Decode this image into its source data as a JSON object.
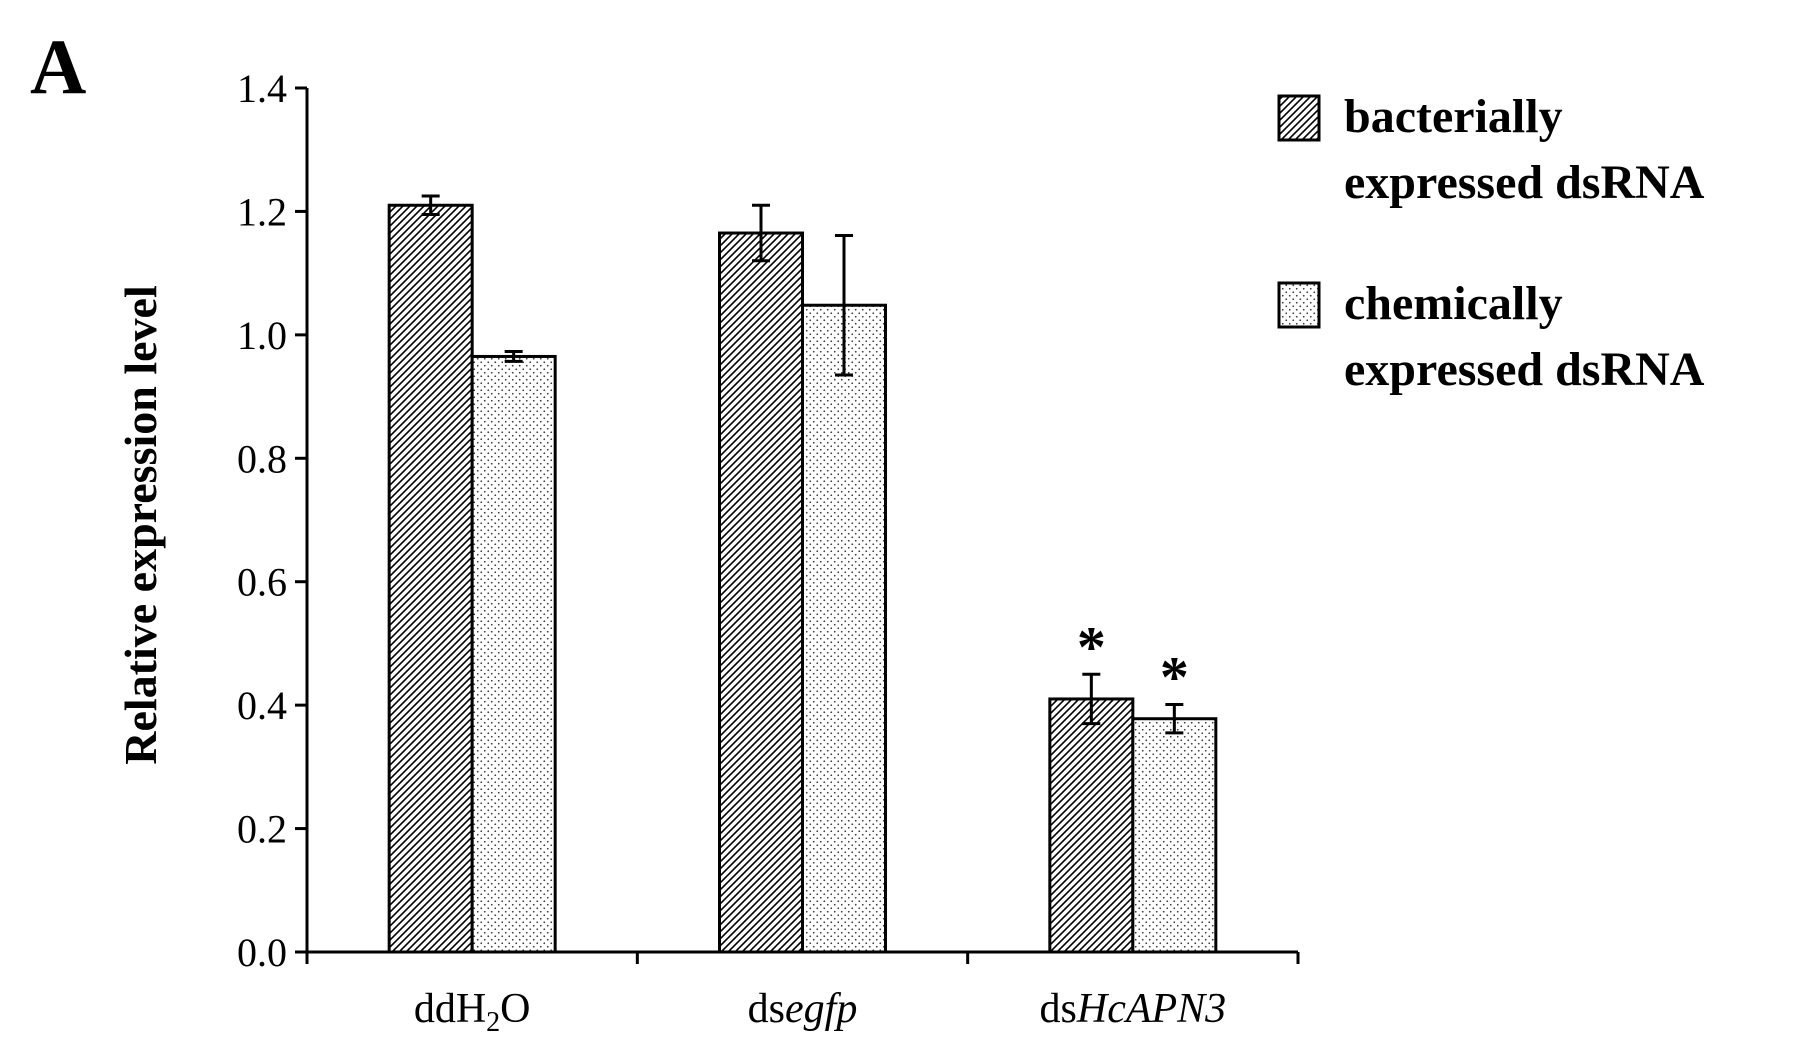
{
  "panel_label": "A",
  "chart_data": {
    "type": "bar",
    "ylabel": "Relative expression level",
    "ylim": [
      0,
      1.4
    ],
    "yticks": [
      0.0,
      0.2,
      0.4,
      0.6,
      0.8,
      1.0,
      1.2,
      1.4
    ],
    "ytick_labels": [
      "0.0",
      "0.2",
      "0.4",
      "0.6",
      "0.8",
      "1.0",
      "1.2",
      "1.4"
    ],
    "categories": [
      {
        "prefix": "ddH",
        "sub": "2",
        "suffix": "O",
        "italic": ""
      },
      {
        "prefix": "ds",
        "sub": "",
        "suffix": "",
        "italic": "egfp"
      },
      {
        "prefix": "ds",
        "sub": "",
        "suffix": "",
        "italic": "HcAPN3"
      }
    ],
    "series": [
      {
        "name_line1": "bacterially",
        "name_line2": "expressed dsRNA",
        "pattern": "hatch",
        "values": [
          1.21,
          1.165,
          0.41
        ],
        "errors": [
          0.015,
          0.045,
          0.04
        ],
        "significance": [
          "",
          "",
          "*"
        ]
      },
      {
        "name_line1": "chemically",
        "name_line2": "expressed dsRNA",
        "pattern": "dots",
        "values": [
          0.965,
          1.048,
          0.378
        ],
        "errors": [
          0.008,
          0.113,
          0.023
        ],
        "significance": [
          "",
          "",
          "*"
        ]
      }
    ],
    "grid": false,
    "legend_position": "top-right"
  }
}
